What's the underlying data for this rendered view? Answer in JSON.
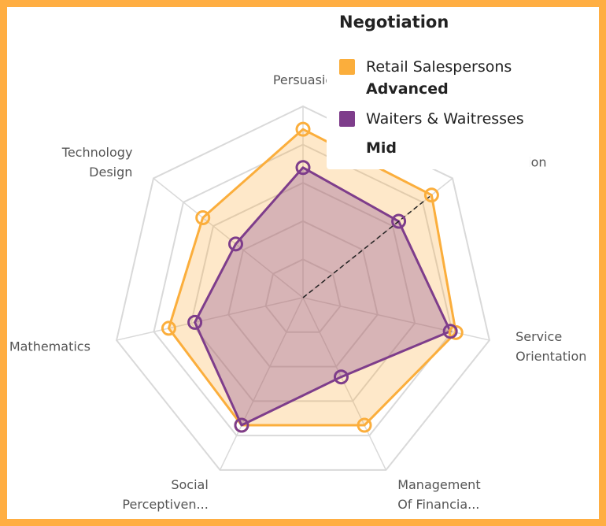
{
  "chart_data": {
    "type": "radar",
    "axes": [
      "Persuasion",
      "Negotiation",
      "Service Orientation",
      "Management Of Financia...",
      "Social Perceptiven...",
      "Mathematics",
      "Technology Design"
    ],
    "axis_display": [
      [
        "Persuasio"
      ],
      [
        "Negotiation"
      ],
      [
        "Service",
        "Orientation"
      ],
      [
        "Management",
        "Of Financia..."
      ],
      [
        "Social",
        "Perceptiven..."
      ],
      [
        "Mathematics"
      ],
      [
        "Technology",
        "Design"
      ]
    ],
    "max": 100,
    "series": [
      {
        "name": "Retail Salespersons",
        "color": "#FBAE3C",
        "values": [
          88,
          86,
          82,
          74,
          74,
          72,
          67
        ]
      },
      {
        "name": "Waiters & Waitresses",
        "color": "#7E3D8B",
        "values": [
          68,
          64,
          79,
          46,
          74,
          58,
          45
        ]
      }
    ],
    "highlight_axis": "Negotiation",
    "grid_levels": 5,
    "tooltip": {
      "title": "Negotiation",
      "items": [
        {
          "name": "Retail Salespersons",
          "level": "Advanced",
          "color": "#FBAE3C"
        },
        {
          "name": "Waiters & Waitresses",
          "level": "Mid",
          "color": "#7E3D8B"
        }
      ]
    }
  }
}
